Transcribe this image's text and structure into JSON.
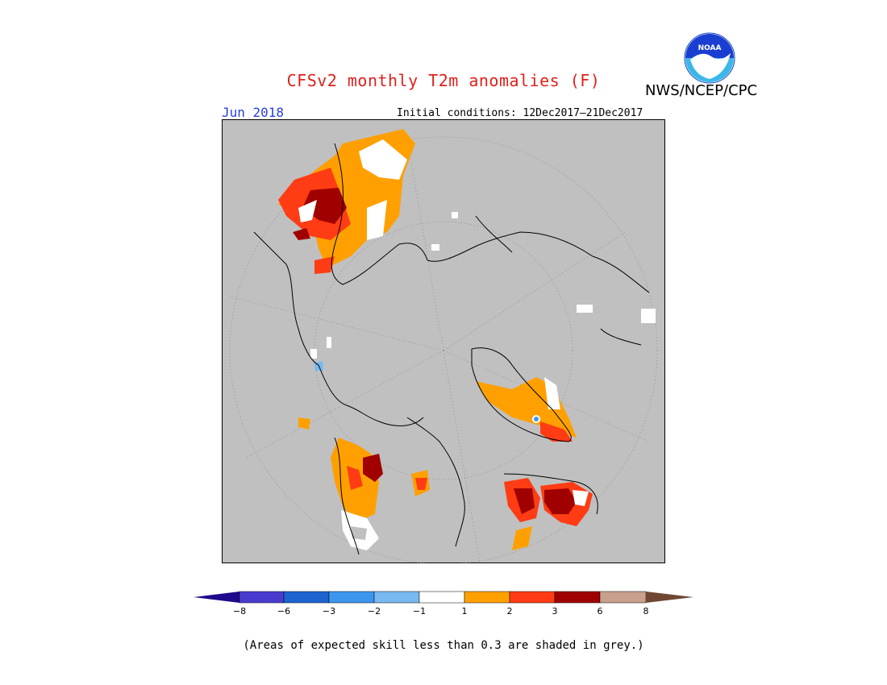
{
  "header": {
    "title": "CFSv2 monthly T2m anomalies (F)",
    "organization": "NWS/NCEP/CPC",
    "logo_text": "NOAA",
    "period": "Jun 2018",
    "initial_conditions": "Initial conditions: 12Dec2017–21Dec2017"
  },
  "legend": {
    "ticks": [
      "−8",
      "−6",
      "−3",
      "−2",
      "−1",
      "1",
      "2",
      "3",
      "6",
      "8"
    ],
    "colors": {
      "lt_minus8": "#1e0a8a",
      "m8_m6": "#4a3bd0",
      "m6_m3": "#1e64d0",
      "m3_m2": "#3c96f0",
      "m2_m1": "#78b9f0",
      "m1_1": "#ffffff",
      "p1_p2": "#ffa000",
      "p2_p3": "#ff3c14",
      "p3_p6": "#a00000",
      "p6_p8": "#c8a08c",
      "gt_8": "#6e4632"
    }
  },
  "map": {
    "projection": "north-polar-stereographic",
    "background_color": "#c0c0c0",
    "coast_color": "#000000"
  },
  "footnote": "(Areas of expected skill less than 0.3 are shaded in grey.)"
}
